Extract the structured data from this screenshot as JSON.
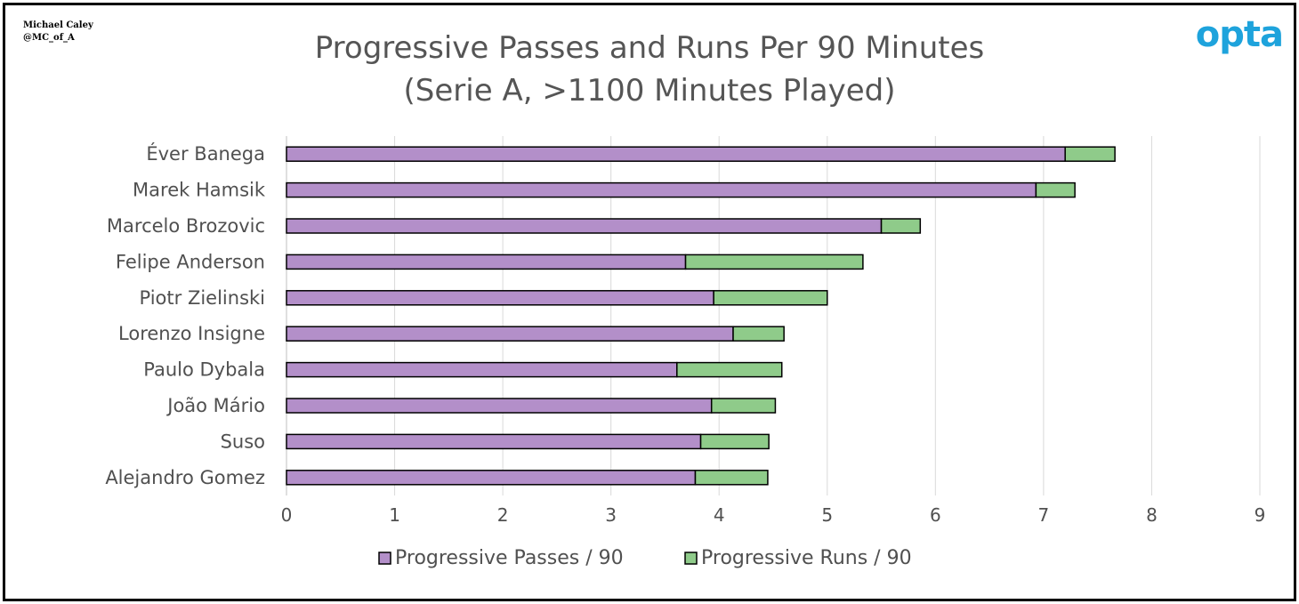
{
  "credit": {
    "line1": "Michael Caley",
    "line2": "@MC_of_A"
  },
  "logo": "opta",
  "chart_data": {
    "type": "bar",
    "orientation": "horizontal",
    "stacked": true,
    "title": "Progressive Passes and Runs Per 90 Minutes",
    "subtitle": "(Serie A, >1100 Minutes Played)",
    "xlim": [
      0,
      9
    ],
    "xticks": [
      0,
      1,
      2,
      3,
      4,
      5,
      6,
      7,
      8,
      9
    ],
    "grid": true,
    "legend_position": "bottom",
    "categories": [
      "Éver Banega",
      "Marek Hamsik",
      "Marcelo Brozovic",
      "Felipe Anderson",
      "Piotr Zielinski",
      "Lorenzo Insigne",
      "Paulo Dybala",
      "João Mário",
      "Suso",
      "Alejandro Gomez"
    ],
    "series": [
      {
        "name": "Progressive Passes / 90",
        "color": "#b38fc9",
        "values": [
          7.2,
          6.93,
          5.5,
          3.69,
          3.95,
          4.13,
          3.61,
          3.93,
          3.83,
          3.78
        ]
      },
      {
        "name": "Progressive Runs / 90",
        "color": "#8fcb8a",
        "values": [
          0.46,
          0.36,
          0.36,
          1.64,
          1.05,
          0.47,
          0.97,
          0.59,
          0.63,
          0.67
        ]
      }
    ]
  }
}
